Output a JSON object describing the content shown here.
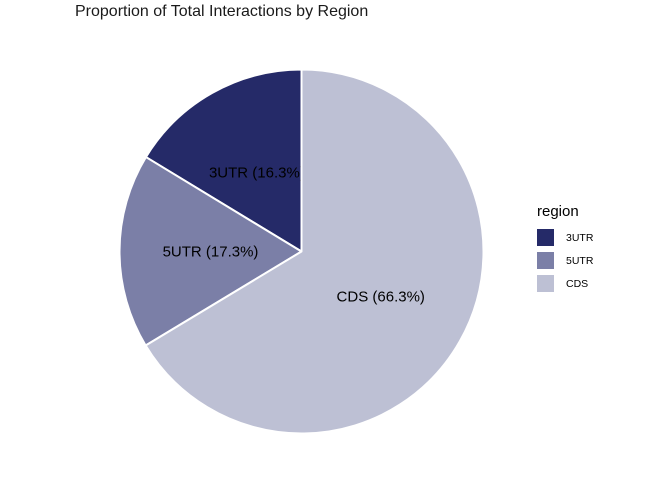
{
  "title": "Proportion of Total Interactions by Region",
  "colors": {
    "background": "#ffffff",
    "title_text": "#1a1a1a",
    "label_text": "#000000",
    "separator": "#ffffff"
  },
  "legend": {
    "title": "region",
    "position": "right",
    "items": [
      {
        "label": "3UTR",
        "color": "#252a68"
      },
      {
        "label": "5UTR",
        "color": "#7b7fa7"
      },
      {
        "label": "CDS",
        "color": "#bdc0d4"
      }
    ]
  },
  "chart_data": {
    "type": "pie",
    "title": "Proportion of Total Interactions by Region",
    "categories": [
      "3UTR",
      "5UTR",
      "CDS"
    ],
    "values": [
      16.3,
      17.3,
      66.3
    ],
    "unit": "percent",
    "slice_labels": [
      "3UTR (16.3%)",
      "5UTR (17.3%)",
      "CDS (66.3%)"
    ],
    "slice_colors": [
      "#252a68",
      "#7b7fa7",
      "#bdc0d4"
    ],
    "start_angle_deg": 0,
    "direction": "counterclockwise",
    "center": {
      "x": 301.5,
      "y": 251.5
    },
    "radius": 182,
    "label_radius_frac": 0.5,
    "separator_color": "#ffffff",
    "separator_width": 2,
    "legend_position": "right",
    "legend_title": "region"
  }
}
